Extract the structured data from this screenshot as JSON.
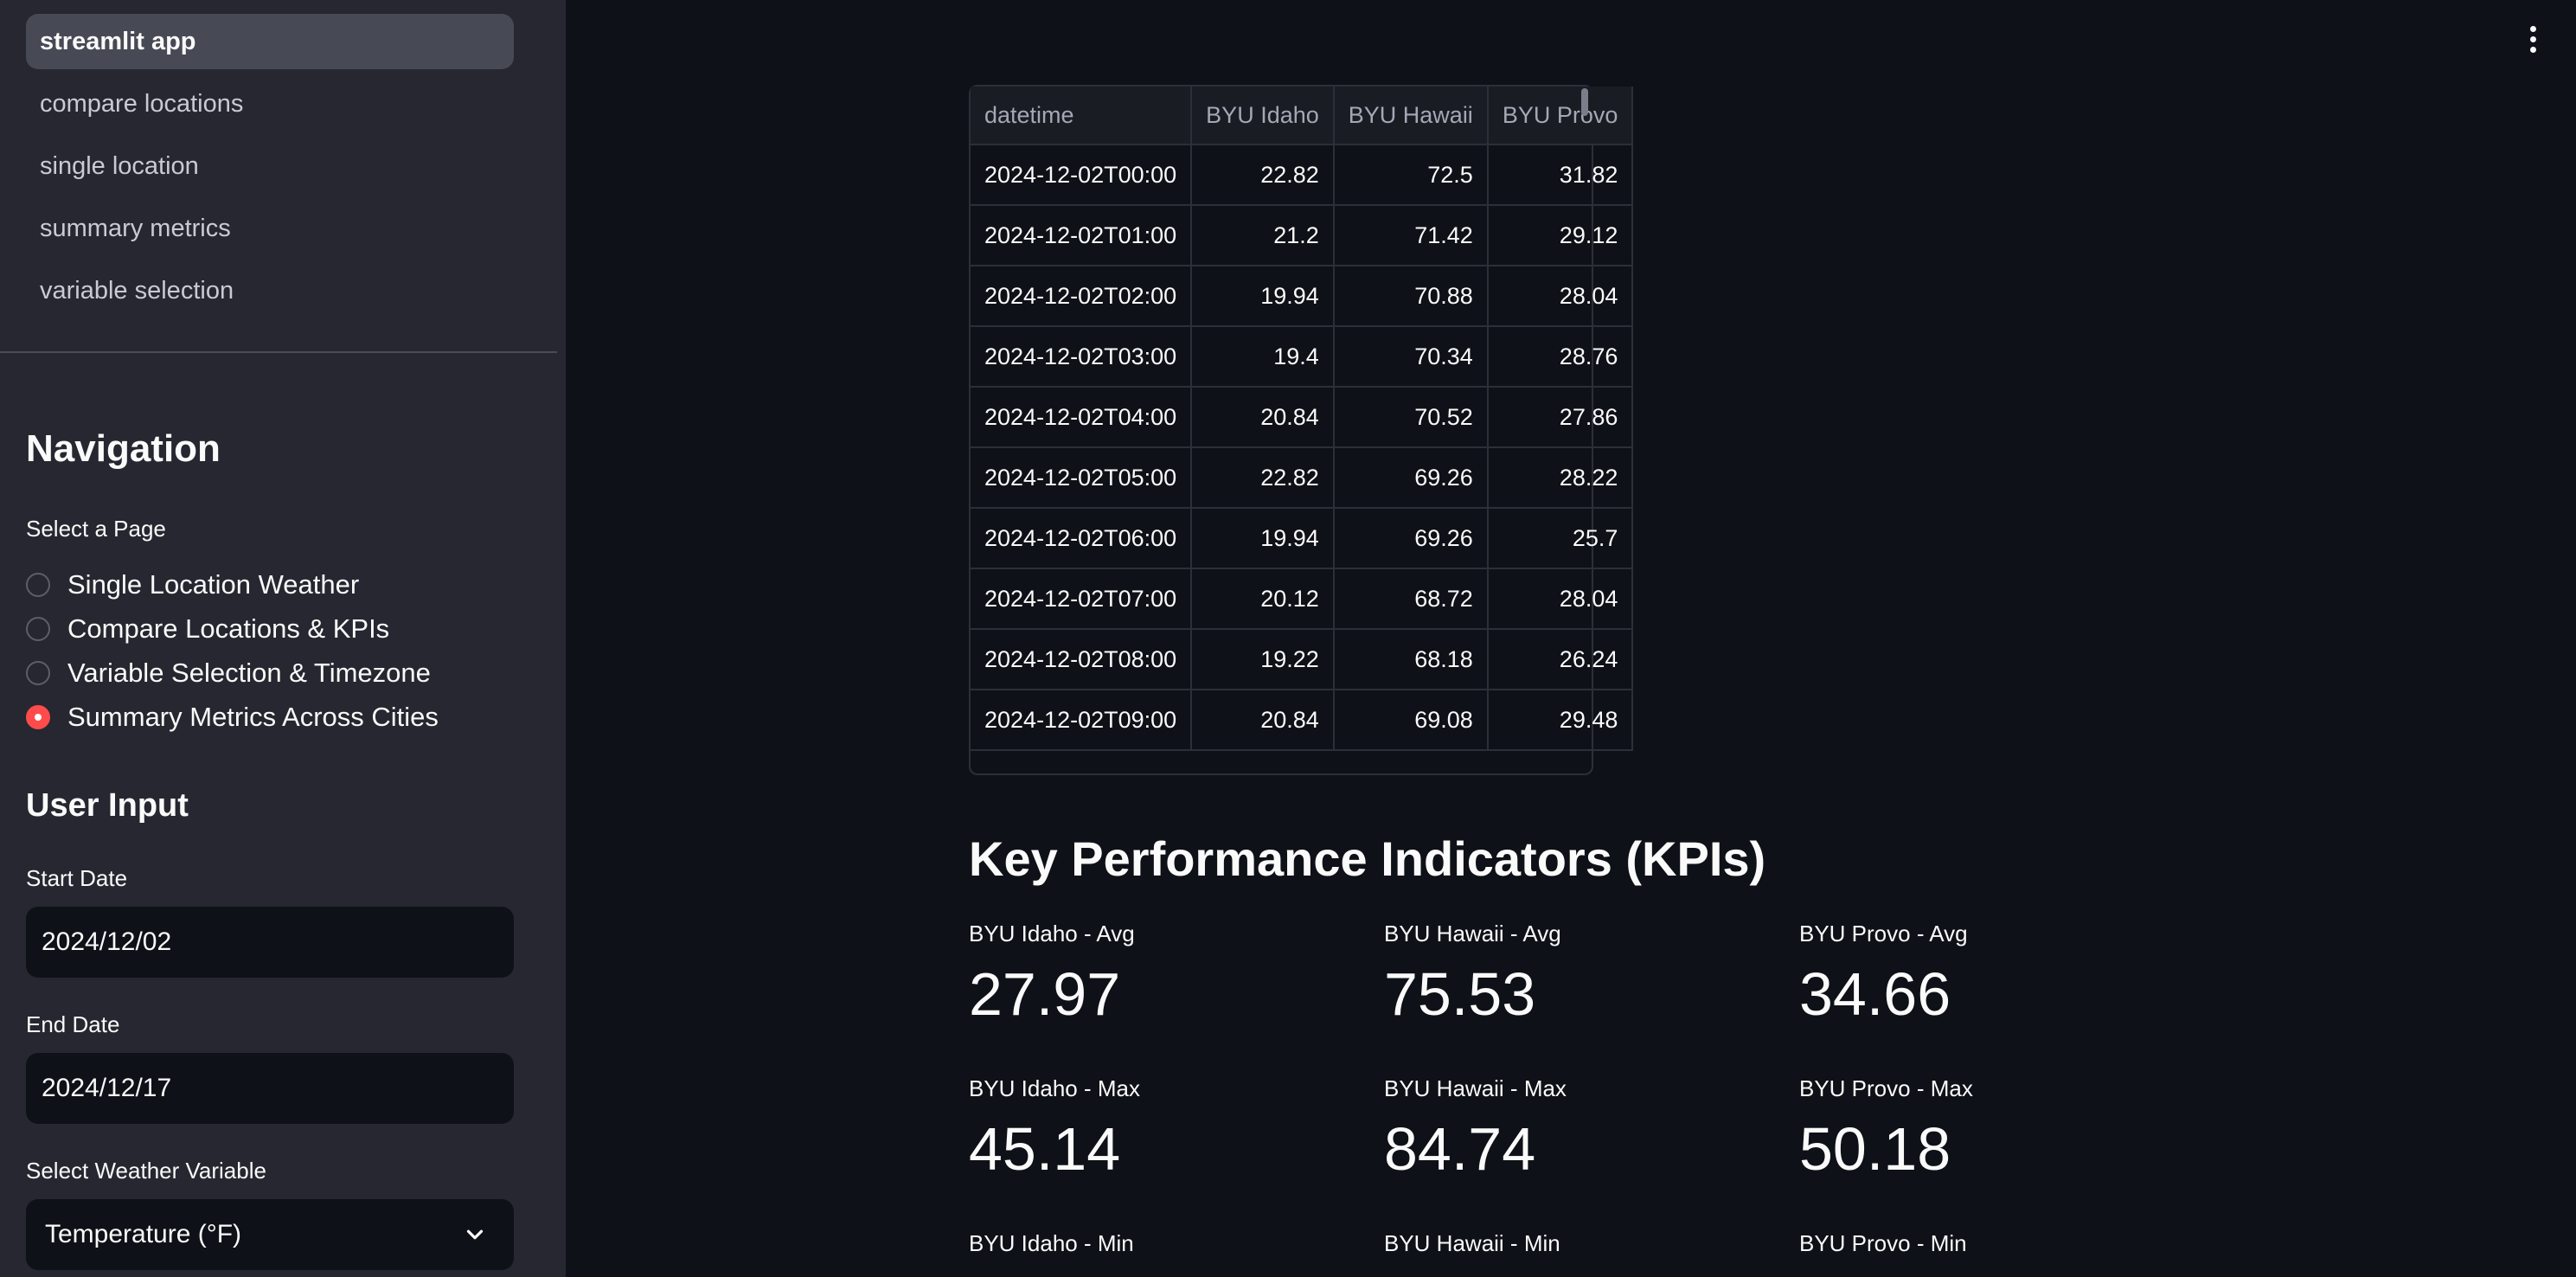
{
  "sidebar": {
    "nav_items": [
      "streamlit app",
      "compare locations",
      "single location",
      "summary metrics",
      "variable selection"
    ],
    "navigation_heading": "Navigation",
    "select_page_label": "Select a Page",
    "radio_options": [
      "Single Location Weather",
      "Compare Locations & KPIs",
      "Variable Selection & Timezone",
      "Summary Metrics Across Cities"
    ],
    "selected_option": "Summary Metrics Across Cities",
    "user_input_heading": "User Input",
    "start_date_label": "Start Date",
    "start_date_value": "2024/12/02",
    "end_date_label": "End Date",
    "end_date_value": "2024/12/17",
    "weather_variable_label": "Select Weather Variable",
    "weather_variable_value": "Temperature (°F)"
  },
  "table": {
    "columns": [
      "datetime",
      "BYU Idaho",
      "BYU Hawaii",
      "BYU Provo"
    ],
    "rows": [
      [
        "2024-12-02T00:00",
        "22.82",
        "72.5",
        "31.82"
      ],
      [
        "2024-12-02T01:00",
        "21.2",
        "71.42",
        "29.12"
      ],
      [
        "2024-12-02T02:00",
        "19.94",
        "70.88",
        "28.04"
      ],
      [
        "2024-12-02T03:00",
        "19.4",
        "70.34",
        "28.76"
      ],
      [
        "2024-12-02T04:00",
        "20.84",
        "70.52",
        "27.86"
      ],
      [
        "2024-12-02T05:00",
        "22.82",
        "69.26",
        "28.22"
      ],
      [
        "2024-12-02T06:00",
        "19.94",
        "69.26",
        "25.7"
      ],
      [
        "2024-12-02T07:00",
        "20.12",
        "68.72",
        "28.04"
      ],
      [
        "2024-12-02T08:00",
        "19.22",
        "68.18",
        "26.24"
      ],
      [
        "2024-12-02T09:00",
        "20.84",
        "69.08",
        "29.48"
      ]
    ]
  },
  "kpis": {
    "heading": "Key Performance Indicators (KPIs)",
    "idaho_avg_label": "BYU Idaho - Avg",
    "idaho_avg": "27.97",
    "hawaii_avg_label": "BYU Hawaii - Avg",
    "hawaii_avg": "75.53",
    "provo_avg_label": "BYU Provo - Avg",
    "provo_avg": "34.66",
    "idaho_max_label": "BYU Idaho - Max",
    "idaho_max": "45.14",
    "hawaii_max_label": "BYU Hawaii - Max",
    "hawaii_max": "84.74",
    "provo_max_label": "BYU Provo - Max",
    "provo_max": "50.18",
    "idaho_min_label": "BYU Idaho - Min",
    "hawaii_min_label": "BYU Hawaii - Min",
    "provo_min_label": "BYU Provo - Min"
  },
  "icons": {
    "menu": "more-vertical-icon",
    "select_arrow": "chevron-down-icon"
  },
  "colors": {
    "accent": "#ff4b4b",
    "background": "#0e1117",
    "sidebar": "#262730"
  }
}
